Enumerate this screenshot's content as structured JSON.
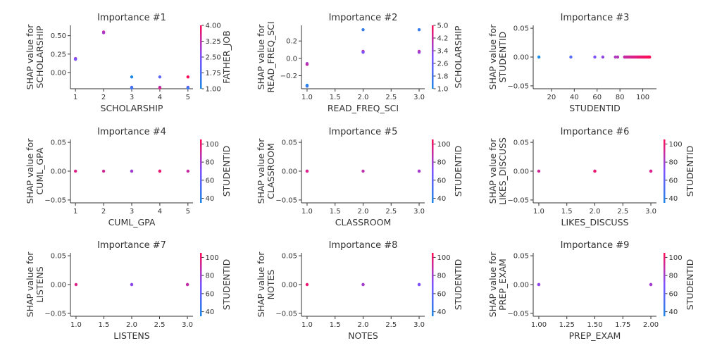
{
  "colors": {
    "low": "#1e88e5",
    "high": "#ff0d57",
    "axis": "#333333"
  },
  "chart_data": [
    {
      "type": "scatter",
      "title": "Importance #1",
      "xlabel": "SCHOLARSHIP",
      "ylabel": [
        "SHAP value for",
        "SCHOLARSHIP"
      ],
      "xlim": [
        0.82,
        5.18
      ],
      "ylim": [
        -0.22,
        0.64
      ],
      "xticks": [
        1,
        2,
        3,
        4,
        5
      ],
      "xticklabels": [
        "1",
        "2",
        "3",
        "4",
        "5"
      ],
      "yticks": [
        0.0,
        0.25,
        0.5
      ],
      "yticklabels": [
        "0.00",
        "0.25",
        "0.50"
      ],
      "colorbar": {
        "label": "FATHER_JOB",
        "range": [
          1.0,
          4.0
        ],
        "ticks": [
          1.0,
          1.75,
          2.5,
          3.25,
          4.0
        ],
        "ticklabels": [
          "1.00",
          "1.75",
          "2.50",
          "3.25",
          "4.00"
        ]
      },
      "points": [
        {
          "x": 1,
          "y": 0.19,
          "c": 3.0
        },
        {
          "x": 1,
          "y": 0.18,
          "c": 2.5
        },
        {
          "x": 2,
          "y": 0.55,
          "c": 3.5
        },
        {
          "x": 2,
          "y": 0.54,
          "c": 3.0
        },
        {
          "x": 3,
          "y": -0.06,
          "c": 1.0
        },
        {
          "x": 3,
          "y": -0.2,
          "c": 2.0
        },
        {
          "x": 3,
          "y": -0.21,
          "c": 1.5
        },
        {
          "x": 4,
          "y": -0.06,
          "c": 2.0
        },
        {
          "x": 4,
          "y": -0.2,
          "c": 3.0
        },
        {
          "x": 4,
          "y": -0.21,
          "c": 3.5
        },
        {
          "x": 5,
          "y": -0.06,
          "c": 4.0
        },
        {
          "x": 5,
          "y": -0.2,
          "c": 2.5
        },
        {
          "x": 5,
          "y": -0.21,
          "c": 1.5
        }
      ]
    },
    {
      "type": "scatter",
      "title": "Importance #2",
      "xlabel": "READ_FREQ_SCI",
      "ylabel": [
        "SHAP value for",
        "READ_FREQ_SCI"
      ],
      "xlim": [
        0.9,
        3.1
      ],
      "ylim": [
        -0.35,
        0.38
      ],
      "xticks": [
        1.0,
        1.5,
        2.0,
        2.5,
        3.0
      ],
      "xticklabels": [
        "1.0",
        "1.5",
        "2.0",
        "2.5",
        "3.0"
      ],
      "yticks": [
        -0.2,
        0.0,
        0.2
      ],
      "yticklabels": [
        "−0.2",
        "0.0",
        "0.2"
      ],
      "colorbar": {
        "label": "SCHOLARSHIP",
        "range": [
          1.0,
          5.0
        ],
        "ticks": [
          1.0,
          1.8,
          2.6,
          3.4,
          4.2,
          5.0
        ],
        "ticklabels": [
          "1.0",
          "1.8",
          "2.6",
          "3.4",
          "4.2",
          "5.0"
        ]
      },
      "points": [
        {
          "x": 1,
          "y": -0.06,
          "c": 3.5
        },
        {
          "x": 1,
          "y": -0.07,
          "c": 4.0
        },
        {
          "x": 1,
          "y": -0.31,
          "c": 1.0
        },
        {
          "x": 1,
          "y": -0.32,
          "c": 1.5
        },
        {
          "x": 2,
          "y": 0.33,
          "c": 1.5
        },
        {
          "x": 2,
          "y": 0.08,
          "c": 4.0
        },
        {
          "x": 2,
          "y": 0.07,
          "c": 3.0
        },
        {
          "x": 3,
          "y": 0.33,
          "c": 1.5
        },
        {
          "x": 3,
          "y": 0.08,
          "c": 4.0
        },
        {
          "x": 3,
          "y": 0.07,
          "c": 3.5
        }
      ]
    },
    {
      "type": "scatter",
      "title": "Importance #3",
      "xlabel": "STUDENTID",
      "ylabel": [
        "SHAP value for",
        "STUDENTID"
      ],
      "xlim": [
        4,
        112
      ],
      "ylim": [
        -0.055,
        0.055
      ],
      "xticks": [
        20,
        40,
        60,
        80,
        100
      ],
      "xticklabels": [
        "20",
        "40",
        "60",
        "80",
        "100"
      ],
      "yticks": [
        -0.05,
        0.0,
        0.05
      ],
      "yticklabels": [
        "−0.05",
        "0.00",
        "0.05"
      ],
      "colorbar": null,
      "points": [
        {
          "x": 9,
          "y": 0,
          "c": 9
        },
        {
          "x": 37,
          "y": 0,
          "c": 37
        },
        {
          "x": 58,
          "y": 0,
          "c": 58
        },
        {
          "x": 65,
          "y": 0,
          "c": 65
        },
        {
          "x": 76,
          "y": 0,
          "c": 76
        },
        {
          "x": 78,
          "y": 0,
          "c": 78
        },
        {
          "x": 84,
          "y": 0,
          "c": 84
        },
        {
          "x": 85,
          "y": 0,
          "c": 85
        },
        {
          "x": 86,
          "y": 0,
          "c": 86
        },
        {
          "x": 87,
          "y": 0,
          "c": 87
        },
        {
          "x": 88,
          "y": 0,
          "c": 88
        },
        {
          "x": 89,
          "y": 0,
          "c": 89
        },
        {
          "x": 90,
          "y": 0,
          "c": 90
        },
        {
          "x": 91,
          "y": 0,
          "c": 91
        },
        {
          "x": 92,
          "y": 0,
          "c": 92
        },
        {
          "x": 93,
          "y": 0,
          "c": 93
        },
        {
          "x": 94,
          "y": 0,
          "c": 94
        },
        {
          "x": 95,
          "y": 0,
          "c": 95
        },
        {
          "x": 96,
          "y": 0,
          "c": 96
        },
        {
          "x": 97,
          "y": 0,
          "c": 97
        },
        {
          "x": 98,
          "y": 0,
          "c": 98
        },
        {
          "x": 99,
          "y": 0,
          "c": 99
        },
        {
          "x": 100,
          "y": 0,
          "c": 100
        },
        {
          "x": 101,
          "y": 0,
          "c": 101
        },
        {
          "x": 102,
          "y": 0,
          "c": 102
        },
        {
          "x": 103,
          "y": 0,
          "c": 103
        },
        {
          "x": 104,
          "y": 0,
          "c": 104
        },
        {
          "x": 105,
          "y": 0,
          "c": 105
        },
        {
          "x": 106,
          "y": 0,
          "c": 106
        }
      ],
      "color_range": [
        9,
        106
      ]
    },
    {
      "type": "scatter",
      "title": "Importance #4",
      "xlabel": "CUML_GPA",
      "ylabel": [
        "SHAP value for",
        "CUML_GPA"
      ],
      "xlim": [
        0.82,
        5.18
      ],
      "ylim": [
        -0.055,
        0.055
      ],
      "xticks": [
        1,
        2,
        3,
        4,
        5
      ],
      "xticklabels": [
        "1",
        "2",
        "3",
        "4",
        "5"
      ],
      "yticks": [
        -0.05,
        0.0,
        0.05
      ],
      "yticklabels": [
        "−0.05",
        "0.00",
        "0.05"
      ],
      "colorbar": {
        "label": "STUDENTID",
        "range": [
          35,
          105
        ],
        "ticks": [
          40,
          60,
          80,
          100
        ],
        "ticklabels": [
          "40",
          "60",
          "80",
          "100"
        ]
      },
      "points": [
        {
          "x": 1,
          "y": 0,
          "c": 95
        },
        {
          "x": 2,
          "y": 0,
          "c": 92
        },
        {
          "x": 3,
          "y": 0,
          "c": 60
        },
        {
          "x": 3,
          "y": 0,
          "c": 80
        },
        {
          "x": 4,
          "y": 0,
          "c": 85
        },
        {
          "x": 4,
          "y": 0,
          "c": 100
        },
        {
          "x": 5,
          "y": 0,
          "c": 90
        }
      ]
    },
    {
      "type": "scatter",
      "title": "Importance #5",
      "xlabel": "CLASSROOM",
      "ylabel": [
        "SHAP value for",
        "CLASSROOM"
      ],
      "xlim": [
        0.9,
        3.1
      ],
      "ylim": [
        -0.055,
        0.055
      ],
      "xticks": [
        1.0,
        1.5,
        2.0,
        2.5,
        3.0
      ],
      "xticklabels": [
        "1.0",
        "1.5",
        "2.0",
        "2.5",
        "3.0"
      ],
      "yticks": [
        -0.05,
        0.0,
        0.05
      ],
      "yticklabels": [
        "−0.05",
        "0.00",
        "0.05"
      ],
      "colorbar": {
        "label": "STUDENTID",
        "range": [
          35,
          105
        ],
        "ticks": [
          40,
          60,
          80,
          100
        ],
        "ticklabels": [
          "40",
          "60",
          "80",
          "100"
        ]
      },
      "points": [
        {
          "x": 1,
          "y": 0,
          "c": 70
        },
        {
          "x": 1,
          "y": 0,
          "c": 95
        },
        {
          "x": 2,
          "y": 0,
          "c": 88
        },
        {
          "x": 3,
          "y": 0,
          "c": 100
        },
        {
          "x": 3,
          "y": 0,
          "c": 80
        }
      ]
    },
    {
      "type": "scatter",
      "title": "Importance #6",
      "xlabel": "LIKES_DISCUSS",
      "ylabel": [
        "SHAP value for",
        "LIKES_DISCUSS"
      ],
      "xlim": [
        0.9,
        3.1
      ],
      "ylim": [
        -0.055,
        0.055
      ],
      "xticks": [
        1.0,
        1.5,
        2.0,
        2.5,
        3.0
      ],
      "xticklabels": [
        "1.0",
        "1.5",
        "2.0",
        "2.5",
        "3.0"
      ],
      "yticks": [
        -0.05,
        0.0,
        0.05
      ],
      "yticklabels": [
        "−0.05",
        "0.00",
        "0.05"
      ],
      "colorbar": {
        "label": "STUDENTID",
        "range": [
          35,
          105
        ],
        "ticks": [
          40,
          60,
          80,
          100
        ],
        "ticklabels": [
          "40",
          "60",
          "80",
          "100"
        ]
      },
      "points": [
        {
          "x": 1,
          "y": 0,
          "c": 92
        },
        {
          "x": 2,
          "y": 0,
          "c": 85
        },
        {
          "x": 2,
          "y": 0,
          "c": 100
        },
        {
          "x": 3,
          "y": 0,
          "c": 75
        },
        {
          "x": 3,
          "y": 0,
          "c": 95
        }
      ]
    },
    {
      "type": "scatter",
      "title": "Importance #7",
      "xlabel": "LISTENS",
      "ylabel": [
        "SHAP value for",
        "LISTENS"
      ],
      "xlim": [
        0.9,
        3.1
      ],
      "ylim": [
        -0.055,
        0.055
      ],
      "xticks": [
        1.0,
        1.5,
        2.0,
        2.5,
        3.0
      ],
      "xticklabels": [
        "1.0",
        "1.5",
        "2.0",
        "2.5",
        "3.0"
      ],
      "yticks": [
        -0.05,
        0.0,
        0.05
      ],
      "yticklabels": [
        "−0.05",
        "0.00",
        "0.05"
      ],
      "colorbar": {
        "label": "STUDENTID",
        "range": [
          35,
          105
        ],
        "ticks": [
          40,
          60,
          80,
          100
        ],
        "ticklabels": [
          "40",
          "60",
          "80",
          "100"
        ]
      },
      "points": [
        {
          "x": 1,
          "y": 0,
          "c": 95
        },
        {
          "x": 2,
          "y": 0,
          "c": 55
        },
        {
          "x": 2,
          "y": 0,
          "c": 75
        },
        {
          "x": 3,
          "y": 0,
          "c": 100
        },
        {
          "x": 3,
          "y": 0,
          "c": 88
        }
      ]
    },
    {
      "type": "scatter",
      "title": "Importance #8",
      "xlabel": "NOTES",
      "ylabel": [
        "SHAP value for",
        "NOTES"
      ],
      "xlim": [
        0.9,
        3.1
      ],
      "ylim": [
        -0.055,
        0.055
      ],
      "xticks": [
        1.0,
        1.5,
        2.0,
        2.5,
        3.0
      ],
      "xticklabels": [
        "1.0",
        "1.5",
        "2.0",
        "2.5",
        "3.0"
      ],
      "yticks": [
        -0.05,
        0.0,
        0.05
      ],
      "yticklabels": [
        "−0.05",
        "0.00",
        "0.05"
      ],
      "colorbar": {
        "label": "STUDENTID",
        "range": [
          35,
          105
        ],
        "ticks": [
          40,
          60,
          80,
          100
        ],
        "ticklabels": [
          "40",
          "60",
          "80",
          "100"
        ]
      },
      "points": [
        {
          "x": 1,
          "y": 0,
          "c": 100
        },
        {
          "x": 2,
          "y": 0,
          "c": 90
        },
        {
          "x": 2,
          "y": 0,
          "c": 80
        },
        {
          "x": 3,
          "y": 0,
          "c": 85
        },
        {
          "x": 3,
          "y": 0,
          "c": 70
        }
      ]
    },
    {
      "type": "scatter",
      "title": "Importance #9",
      "xlabel": "PREP_EXAM",
      "ylabel": [
        "SHAP value for",
        "PREP_EXAM"
      ],
      "xlim": [
        0.95,
        2.05
      ],
      "ylim": [
        -0.055,
        0.055
      ],
      "xticks": [
        1.0,
        1.25,
        1.5,
        1.75,
        2.0
      ],
      "xticklabels": [
        "1.00",
        "1.25",
        "1.50",
        "1.75",
        "2.00"
      ],
      "yticks": [
        -0.05,
        0.0,
        0.05
      ],
      "yticklabels": [
        "−0.05",
        "0.00",
        "0.05"
      ],
      "colorbar": {
        "label": "STUDENTID",
        "range": [
          35,
          105
        ],
        "ticks": [
          40,
          60,
          80,
          100
        ],
        "ticklabels": [
          "40",
          "60",
          "80",
          "100"
        ]
      },
      "points": [
        {
          "x": 1,
          "y": 0,
          "c": 90
        },
        {
          "x": 1,
          "y": 0,
          "c": 75
        },
        {
          "x": 2,
          "y": 0,
          "c": 95
        },
        {
          "x": 2,
          "y": 0,
          "c": 80
        }
      ]
    }
  ]
}
